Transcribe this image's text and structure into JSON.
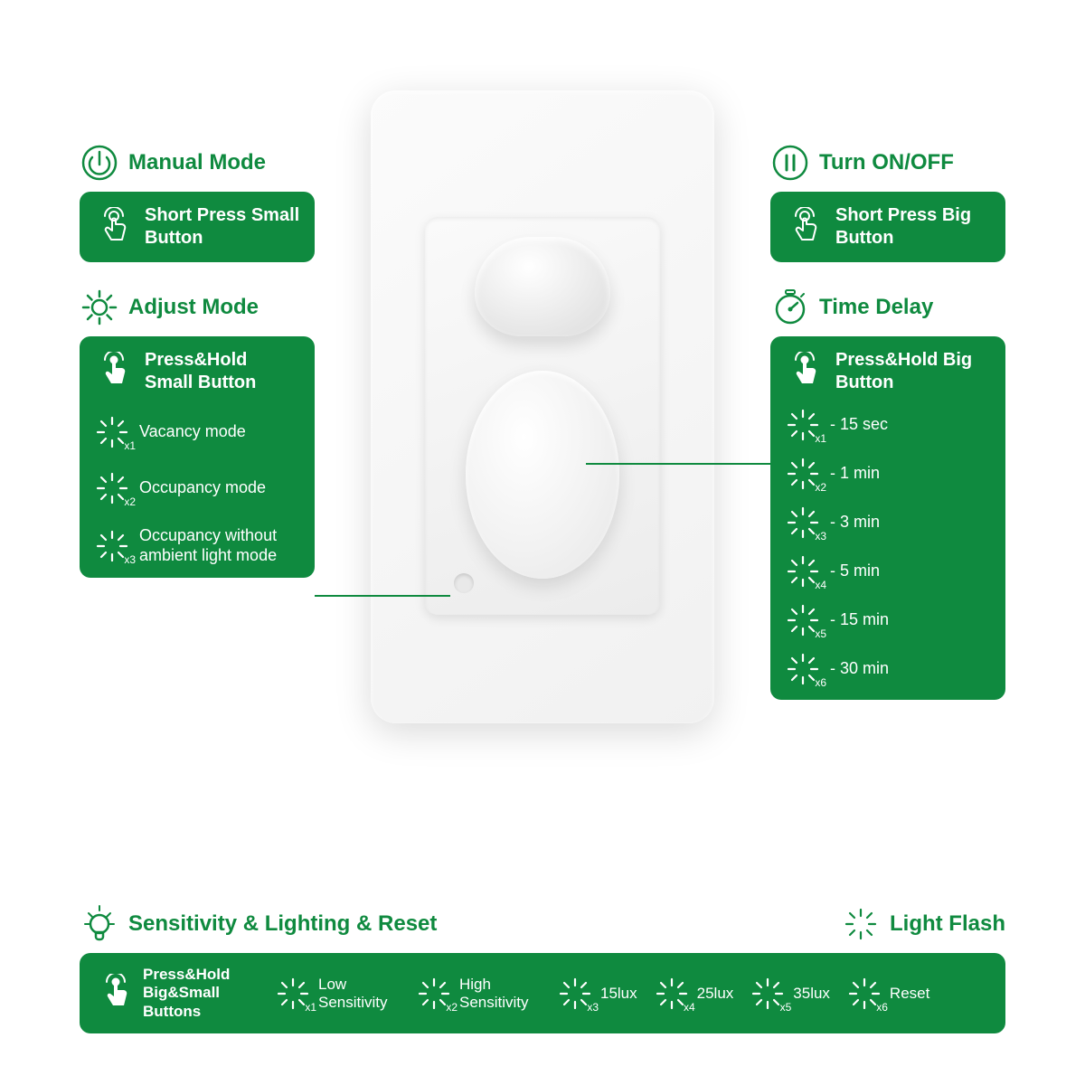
{
  "colors": {
    "green": "#0f8a3f",
    "white": "#ffffff",
    "bg": "#ffffff"
  },
  "left": {
    "manual": {
      "title": "Manual Mode",
      "action": "Short Press Small Button"
    },
    "adjust": {
      "title": "Adjust Mode",
      "action": "Press&Hold Small Button",
      "items": [
        {
          "count": "x1",
          "label": "Vacancy mode"
        },
        {
          "count": "x2",
          "label": "Occupancy mode"
        },
        {
          "count": "x3",
          "label": "Occupancy without ambient light mode"
        }
      ]
    }
  },
  "right": {
    "onoff": {
      "title": "Turn ON/OFF",
      "action": "Short Press Big Button"
    },
    "delay": {
      "title": "Time Delay",
      "action": "Press&Hold Big Button",
      "items": [
        {
          "count": "x1",
          "label": "- 15 sec"
        },
        {
          "count": "x2",
          "label": "- 1 min"
        },
        {
          "count": "x3",
          "label": "- 3 min"
        },
        {
          "count": "x4",
          "label": "- 5 min"
        },
        {
          "count": "x5",
          "label": "- 15 min"
        },
        {
          "count": "x6",
          "label": "- 30 min"
        }
      ]
    }
  },
  "bottom": {
    "title_left": "Sensitivity & Lighting & Reset",
    "title_right": "Light Flash",
    "action": "Press&Hold Big&Small Buttons",
    "items": [
      {
        "count": "x1",
        "label": "Low Sensitivity"
      },
      {
        "count": "x2",
        "label": "High Sensitivity"
      },
      {
        "count": "x3",
        "label": "15lux"
      },
      {
        "count": "x4",
        "label": "25lux"
      },
      {
        "count": "x5",
        "label": "35lux"
      },
      {
        "count": "x6",
        "label": "Reset"
      }
    ]
  }
}
